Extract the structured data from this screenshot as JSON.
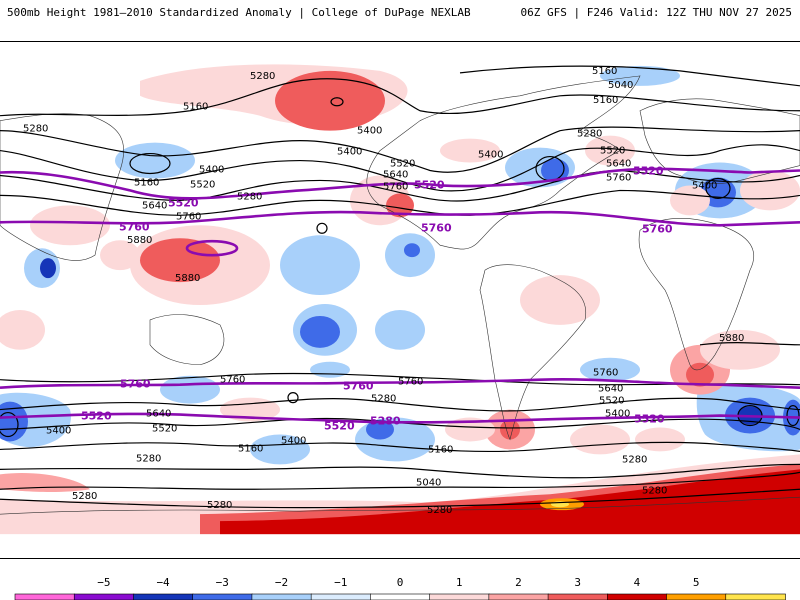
{
  "header": {
    "left": "500mb Height 1981–2010 Standardized Anomaly | College of DuPage NEXLAB",
    "right": "06Z GFS | F246 Valid: 12Z THU NOV 27 2025"
  },
  "legend": {
    "ticks": [
      "−5",
      "−4",
      "−3",
      "−2",
      "−1",
      "0",
      "1",
      "2",
      "3",
      "4",
      "5"
    ],
    "colors": [
      "#ff66d9",
      "#8a0bd0",
      "#1535b8",
      "#3f6be8",
      "#a8d0fa",
      "#dbecfd",
      "#ffffff",
      "#fcd9d9",
      "#fba4a4",
      "#ef5c5c",
      "#d00000",
      "#ff9f00",
      "#ffe44d"
    ]
  },
  "contour_labels": {
    "l5160a": "5160",
    "l5040a": "5040",
    "l5160b": "5160",
    "l5280a": "5280",
    "l5160c": "5160",
    "l5280b": "5280",
    "l5400a": "5400",
    "l5400b": "5400",
    "l5280c": "5280",
    "l5400c": "5400",
    "l5520a": "5520",
    "l5640a": "5640",
    "l5760a": "5760",
    "l5400d": "5400",
    "l5520b": "5520",
    "l5640b": "5640",
    "l5760b": "5760",
    "l5400e": "5400",
    "l5520c": "5520",
    "l5640c": "5640",
    "l5760c": "5760",
    "l5160d": "5160",
    "l5280d": "5280",
    "l5880a": "5880",
    "l5880b": "5880",
    "l5880c": "5880",
    "l5760d": "5760",
    "l5760e": "5760",
    "l5760f": "5760",
    "l5640d": "5640",
    "l5640e": "5640",
    "l5520d": "5520",
    "l5520e": "5520",
    "l5400f": "5400",
    "l5400g": "5400",
    "l5400h": "5400",
    "l5160e": "5160",
    "l5160f": "5160",
    "l5280e": "5280",
    "l5280f": "5280",
    "l5280g": "5280",
    "l5280h": "5280",
    "l5280i": "5280",
    "l5280j": "5280",
    "l5280k": "5280",
    "l5040b": "5040"
  },
  "highlight_labels": {
    "n5520a": "5520",
    "n5520b": "5520",
    "n5520c": "5520",
    "n5760a": "5760",
    "n5760b": "5760",
    "n5760c": "5760",
    "s5760a": "5760",
    "s5760b": "5760",
    "s5520a": "5520",
    "s5520b": "5520",
    "s5520c": "5520",
    "s5280": "5280"
  }
}
